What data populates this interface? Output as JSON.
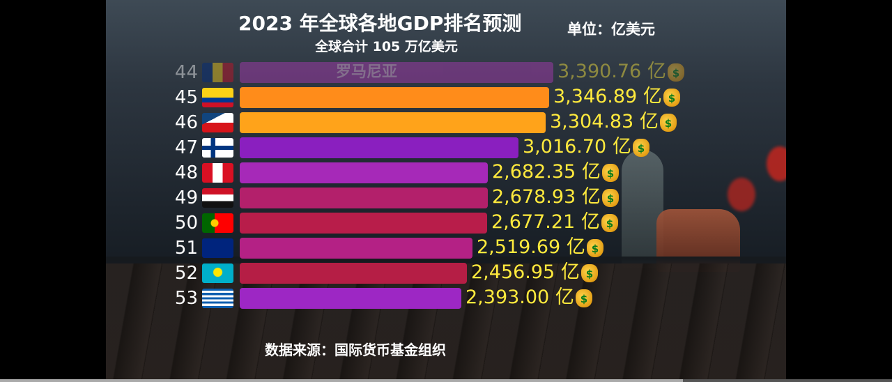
{
  "header": {
    "title": "2023 年全球各地GDP排名预测",
    "subtitle": "全球合计 105 万亿美元",
    "unit": "单位：亿美元"
  },
  "source": "数据来源：国际货币基金组织",
  "chart_data": {
    "type": "bar",
    "orientation": "horizontal",
    "title": "2023 年全球各地GDP排名预测",
    "subtitle": "全球合计 105 万亿美元",
    "unit": "单位：亿美元",
    "value_suffix": "亿",
    "rows": [
      {
        "rank": "44",
        "name": "罗马尼亚",
        "value": 3390.76,
        "label": "3,390.76 亿",
        "color": "#b03ab8",
        "flag": "romania",
        "faded": true
      },
      {
        "rank": "45",
        "name": "哥伦比亚",
        "value": 3346.89,
        "label": "3,346.89 亿",
        "color": "#ff8c1a",
        "flag": "colombia"
      },
      {
        "rank": "46",
        "name": "捷克",
        "value": 3304.83,
        "label": "3,304.83 亿",
        "color": "#ffa31a",
        "flag": "czechia"
      },
      {
        "rank": "47",
        "name": "芬兰",
        "value": 3016.7,
        "label": "3,016.70 亿",
        "color": "#8a1fbf",
        "flag": "finland"
      },
      {
        "rank": "48",
        "name": "秘鲁",
        "value": 2682.35,
        "label": "2,682.35 亿",
        "color": "#a629b8",
        "flag": "peru"
      },
      {
        "rank": "49",
        "name": "伊拉克",
        "value": 2678.93,
        "label": "2,678.93 亿",
        "color": "#b3206b",
        "flag": "iraq"
      },
      {
        "rank": "50",
        "name": "葡萄牙",
        "value": 2677.21,
        "label": "2,677.21 亿",
        "color": "#b81d4a",
        "flag": "portugal"
      },
      {
        "rank": "51",
        "name": "新西兰",
        "value": 2519.69,
        "label": "2,519.69 亿",
        "color": "#b42185",
        "flag": "new-zealand"
      },
      {
        "rank": "52",
        "name": "哈萨克斯坦",
        "value": 2456.95,
        "label": "2,456.95 亿",
        "color": "#b51e45",
        "flag": "kazakhstan"
      },
      {
        "rank": "53",
        "name": "希腊",
        "value": 2393.0,
        "label": "2,393.00 亿",
        "color": "#9d27c4",
        "flag": "greece"
      }
    ]
  }
}
